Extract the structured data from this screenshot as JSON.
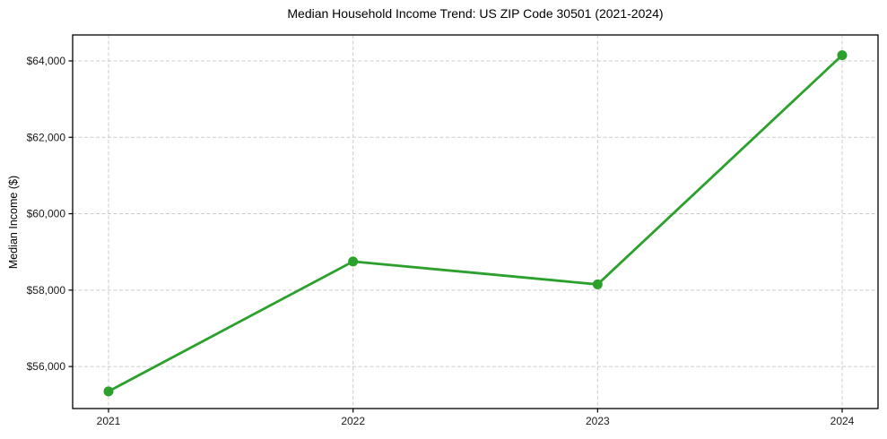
{
  "chart_data": {
    "type": "line",
    "title": "Median Household Income Trend: US ZIP Code 30501 (2021-2024)",
    "xlabel": "",
    "ylabel": "Median Income ($)",
    "categories": [
      "2021",
      "2022",
      "2023",
      "2024"
    ],
    "series": [
      {
        "name": "Median household income",
        "values": [
          55350,
          58750,
          58150,
          64150
        ],
        "color": "#2ca02c",
        "marker": "circle"
      }
    ],
    "xtick_labels": [
      "2021",
      "2022",
      "2023",
      "2024"
    ],
    "yticks": [
      56000,
      58000,
      60000,
      62000,
      64000
    ],
    "ytick_labels": [
      "$56,000",
      "$58,000",
      "$60,000",
      "$62,000",
      "$64,000"
    ],
    "ylim": [
      54900,
      64680
    ],
    "grid": true,
    "grid_style": "dashed",
    "grid_color": "#cccccc",
    "axis_color": "#000000",
    "background_color": "#ffffff",
    "legend_position": "none"
  }
}
